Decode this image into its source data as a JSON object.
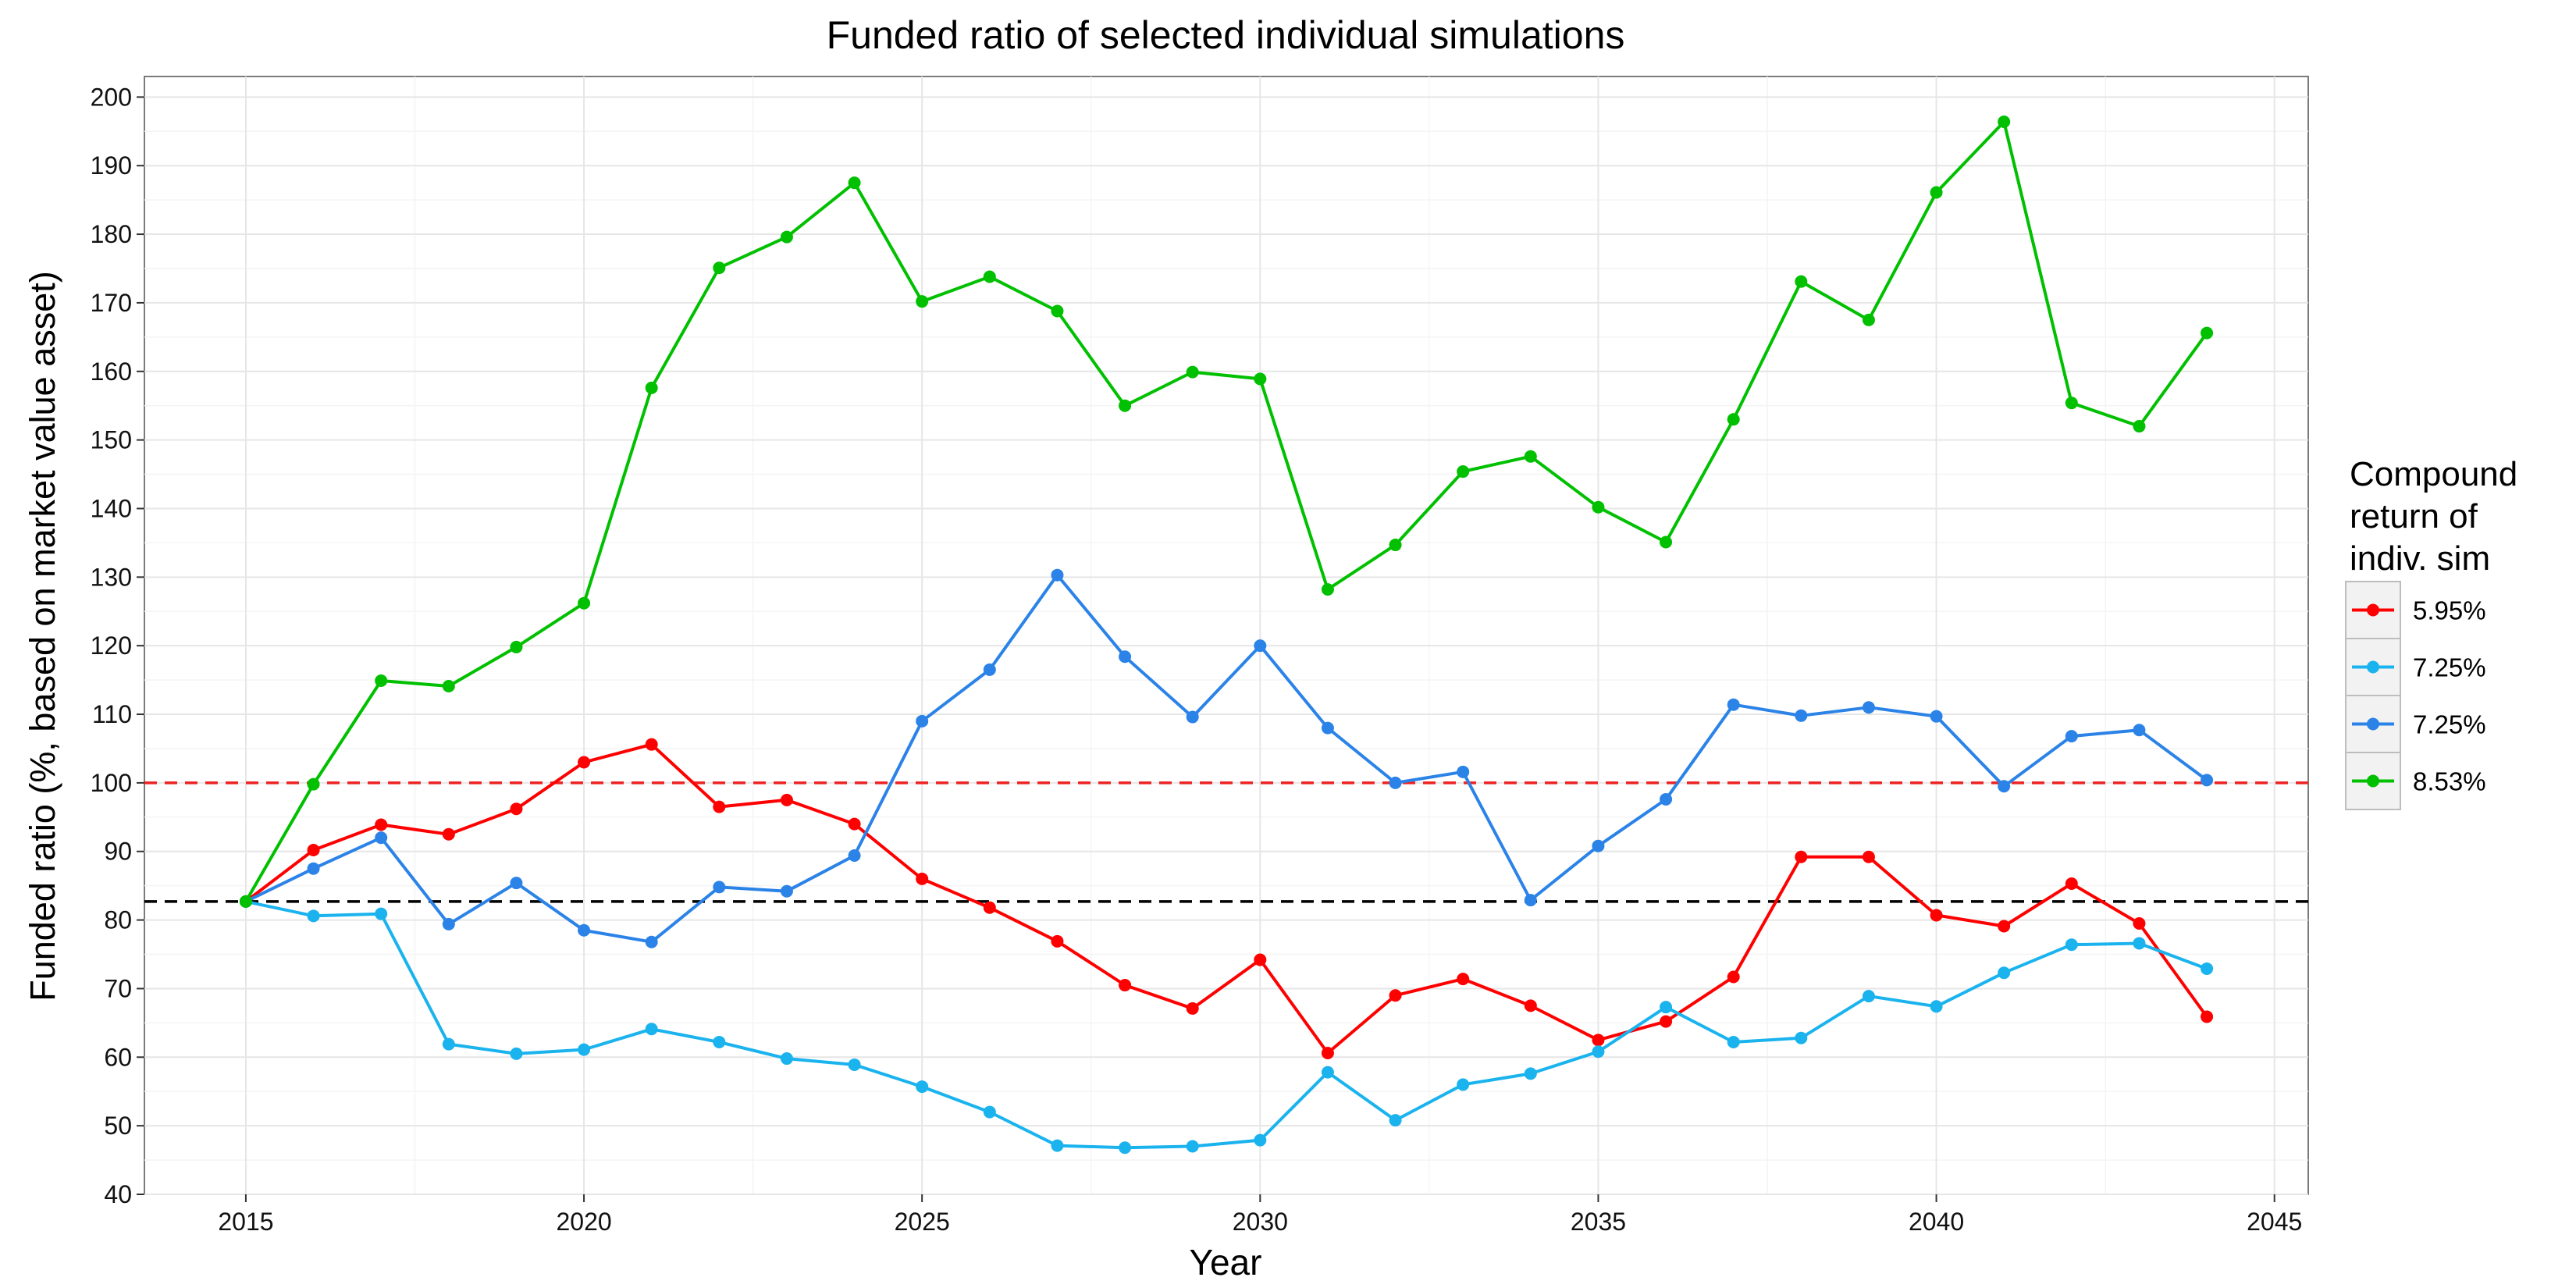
{
  "chart_data": {
    "type": "line",
    "title": "Funded ratio of selected individual simulations",
    "xlabel": "Year",
    "ylabel": "Funded ratio (%, based on market value asset)",
    "xlim": [
      2013.5,
      2045.5
    ],
    "ylim": [
      40,
      203
    ],
    "x_ticks": [
      2015,
      2020,
      2025,
      2030,
      2035,
      2040,
      2045
    ],
    "y_ticks": [
      40,
      50,
      60,
      70,
      80,
      90,
      100,
      110,
      120,
      130,
      140,
      150,
      160,
      170,
      180,
      190,
      200
    ],
    "grid": true,
    "legend": {
      "title_lines": [
        "Compound",
        "return of",
        "indiv. sim"
      ],
      "position": "right"
    },
    "reference_lines": [
      {
        "y": 100,
        "color": "#ee2222",
        "style": "dashed"
      },
      {
        "y": 82.7,
        "color": "#000000",
        "style": "dashed"
      }
    ],
    "x": [
      2015,
      2016,
      2017,
      2018,
      2019,
      2020,
      2021,
      2022,
      2023,
      2024,
      2025,
      2026,
      2027,
      2028,
      2029,
      2030,
      2031,
      2032,
      2033,
      2034,
      2035,
      2036,
      2037,
      2038,
      2039,
      2040,
      2041,
      2042,
      2043,
      2044
    ],
    "series": [
      {
        "name": "5.95%",
        "color": "#ff0000",
        "values": [
          82.7,
          90.2,
          93.9,
          92.5,
          96.2,
          103.0,
          105.6,
          96.5,
          97.5,
          94.0,
          86.0,
          81.8,
          76.9,
          70.5,
          67.1,
          74.2,
          60.6,
          69.0,
          71.4,
          67.5,
          62.5,
          65.2,
          71.7,
          89.2,
          89.2,
          80.7,
          79.1,
          85.3,
          79.5,
          65.9
        ]
      },
      {
        "name": "7.25%",
        "color": "#1ab3ee",
        "values": [
          82.7,
          80.6,
          80.9,
          61.9,
          60.5,
          61.1,
          64.1,
          62.2,
          59.8,
          58.9,
          55.7,
          52.0,
          47.1,
          46.8,
          47.0,
          47.9,
          57.8,
          50.8,
          56.0,
          57.6,
          60.8,
          67.3,
          62.2,
          62.8,
          68.9,
          67.4,
          72.3,
          76.4,
          76.6,
          72.9
        ]
      },
      {
        "name": "7.25%",
        "color": "#2b83e8",
        "values": [
          82.7,
          87.5,
          92.0,
          79.4,
          85.4,
          78.5,
          76.8,
          84.8,
          84.2,
          89.4,
          109.0,
          116.5,
          130.3,
          118.4,
          109.6,
          120.0,
          108.0,
          100.0,
          101.6,
          82.9,
          90.8,
          97.6,
          111.4,
          109.8,
          111.0,
          109.7,
          99.5,
          106.8,
          107.7,
          100.4
        ]
      },
      {
        "name": "8.53%",
        "color": "#00c000",
        "values": [
          82.7,
          99.8,
          114.9,
          114.1,
          119.8,
          126.2,
          157.6,
          175.1,
          179.6,
          187.5,
          170.2,
          173.8,
          168.8,
          155.0,
          159.9,
          158.9,
          128.2,
          134.7,
          145.4,
          147.6,
          140.2,
          135.1,
          153.0,
          173.1,
          167.5,
          186.1,
          196.4,
          155.4,
          152.0,
          165.6
        ]
      }
    ]
  }
}
